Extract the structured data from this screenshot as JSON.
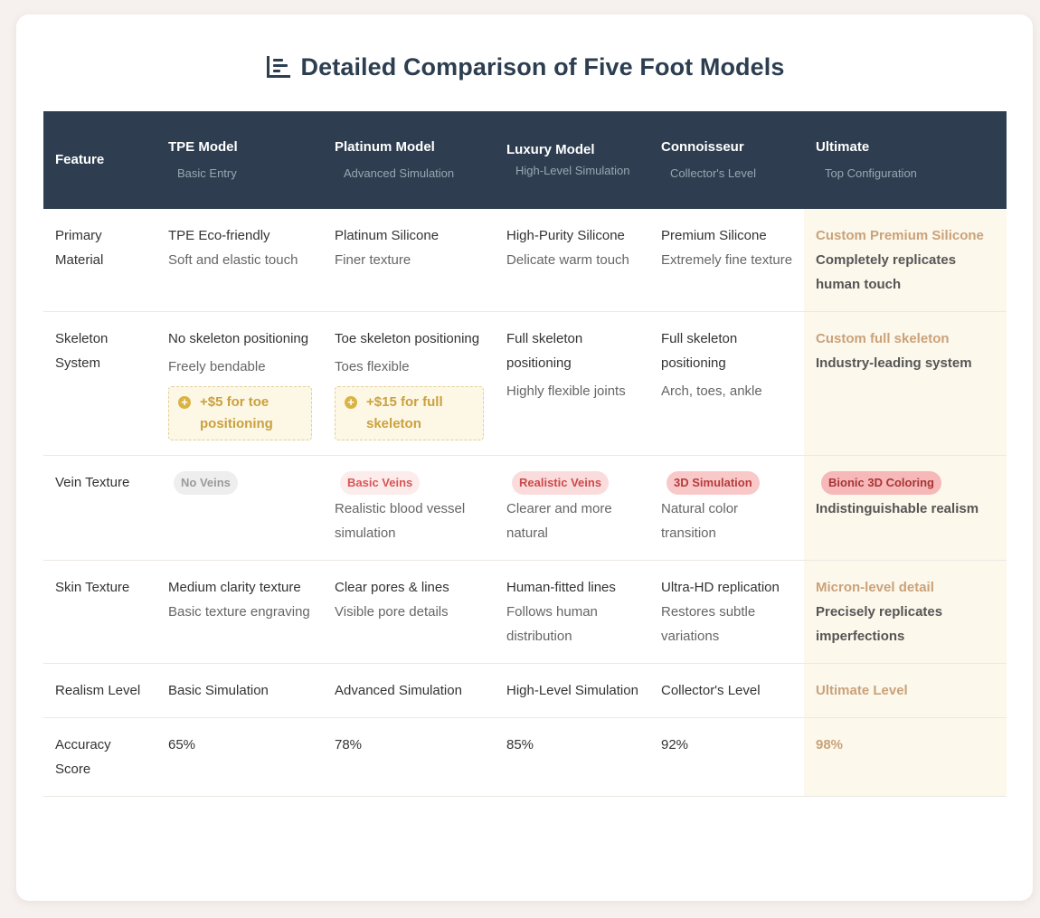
{
  "title": "Detailed Comparison of Five Foot Models",
  "title_icon": "bar-chart-icon",
  "columns": [
    {
      "label": "Feature",
      "sub": ""
    },
    {
      "label": "TPE Model",
      "sub": "Basic Entry"
    },
    {
      "label": "Platinum Model",
      "sub": "Advanced Simulation"
    },
    {
      "label": "Luxury Model",
      "sub": "High-Level Simulation"
    },
    {
      "label": "Connoisseur",
      "sub": "Collector's Level"
    },
    {
      "label": "Ultimate",
      "sub": "Top Configuration"
    }
  ],
  "rows": {
    "material": {
      "label": "Primary Material",
      "cells": [
        {
          "main": "TPE Eco-friendly",
          "sub": "Soft and elastic touch"
        },
        {
          "main": "Platinum Silicone",
          "sub": "Finer texture"
        },
        {
          "main": "High-Purity Silicone",
          "sub": "Delicate warm touch"
        },
        {
          "main": "Premium Silicone",
          "sub": "Extremely fine texture"
        },
        {
          "main": "Custom Premium Silicone",
          "sub": "Completely replicates human touch"
        }
      ]
    },
    "skeleton": {
      "label": "Skeleton System",
      "cells": [
        {
          "main": "No skeleton positioning",
          "sub": "Freely bendable",
          "addon": "+$5 for toe positioning"
        },
        {
          "main": "Toe skeleton positioning",
          "sub": "Toes flexible",
          "addon": "+$15 for full skeleton"
        },
        {
          "main": "Full skeleton positioning",
          "sub": "Highly flexible joints"
        },
        {
          "main": "Full skeleton positioning",
          "sub": "Arch, toes, ankle"
        },
        {
          "main": "Custom full skeleton",
          "sub": "Industry-leading system"
        }
      ]
    },
    "vein": {
      "label": "Vein Texture",
      "cells": [
        {
          "badge": "No Veins",
          "sub": ""
        },
        {
          "badge": "Basic Veins",
          "sub": "Realistic blood vessel simulation"
        },
        {
          "badge": "Realistic Veins",
          "sub": "Clearer and more natural"
        },
        {
          "badge": "3D Simulation",
          "sub": "Natural color transition"
        },
        {
          "badge": "Bionic 3D Coloring",
          "sub": "Indistinguishable realism"
        }
      ]
    },
    "skin": {
      "label": "Skin Texture",
      "cells": [
        {
          "main": "Medium clarity texture",
          "sub": "Basic texture engraving"
        },
        {
          "main": "Clear pores & lines",
          "sub": "Visible pore details"
        },
        {
          "main": "Human-fitted lines",
          "sub": "Follows human distribution"
        },
        {
          "main": "Ultra-HD replication",
          "sub": "Restores subtle variations"
        },
        {
          "main": "Micron-level detail",
          "sub": "Precisely replicates imperfections"
        }
      ]
    },
    "realism": {
      "label": "Realism Level",
      "cells": [
        "Basic Simulation",
        "Advanced Simulation",
        "High-Level Simulation",
        "Collector's Level",
        "Ultimate Level"
      ]
    },
    "accuracy": {
      "label": "Accuracy Score",
      "cells": [
        "65%",
        "78%",
        "85%",
        "92%",
        "98%"
      ]
    }
  },
  "colors": {
    "header_bg": "#2e3e50",
    "ultimate_bg": "#fdf8ec",
    "ultimate_accent": "#c9a27a",
    "addon_accent": "#c9a23e"
  }
}
